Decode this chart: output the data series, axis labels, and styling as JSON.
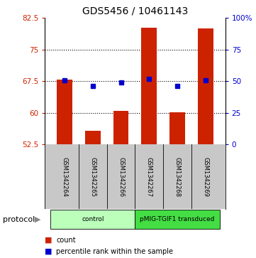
{
  "title": "GDS5456 / 10461143",
  "samples": [
    "GSM1342264",
    "GSM1342265",
    "GSM1342266",
    "GSM1342267",
    "GSM1342268",
    "GSM1342269"
  ],
  "bar_values": [
    67.9,
    55.8,
    60.5,
    80.2,
    60.2,
    80.1
  ],
  "bar_color": "#cc2200",
  "blue_values": [
    67.75,
    66.4,
    67.3,
    68.0,
    66.4,
    67.8
  ],
  "blue_color": "#0000cc",
  "ylim_left": [
    52.5,
    82.5
  ],
  "ylim_right": [
    0,
    100
  ],
  "yticks_left": [
    52.5,
    60.0,
    67.5,
    75.0,
    82.5
  ],
  "ytick_labels_left": [
    "52.5",
    "60",
    "67.5",
    "75",
    "82.5"
  ],
  "yticks_right": [
    0,
    25,
    50,
    75,
    100
  ],
  "ytick_labels_right": [
    "0",
    "25",
    "50",
    "75",
    "100%"
  ],
  "hlines": [
    60.0,
    67.5,
    75.0
  ],
  "protocol_groups": [
    {
      "label": "control",
      "indices": [
        0,
        1,
        2
      ],
      "color": "#bbffbb"
    },
    {
      "label": "pMIG-TGIF1 transduced",
      "indices": [
        3,
        4,
        5
      ],
      "color": "#44dd44"
    }
  ],
  "protocol_label": "protocol",
  "legend_count_label": "count",
  "legend_pct_label": "percentile rank within the sample",
  "bar_width": 0.55,
  "bar_bottom": 52.5,
  "fig_bg": "#ffffff",
  "plot_bg": "#ffffff",
  "label_bg": "#c8c8c8"
}
